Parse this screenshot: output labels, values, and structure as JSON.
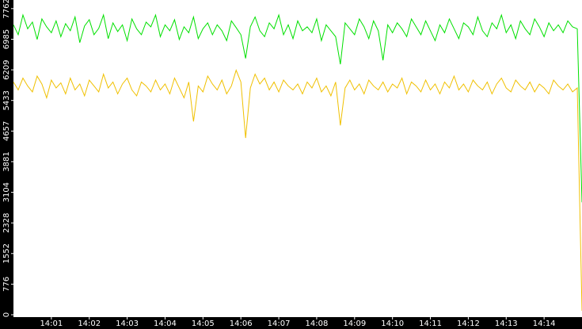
{
  "chart_data": {
    "type": "line",
    "xlim": [
      0,
      120
    ],
    "xticks": [
      {
        "value": 8,
        "label": "14:01"
      },
      {
        "value": 16,
        "label": "14:02"
      },
      {
        "value": 24,
        "label": "14:03"
      },
      {
        "value": 32,
        "label": "14:04"
      },
      {
        "value": 40,
        "label": "14:05"
      },
      {
        "value": 48,
        "label": "14:06"
      },
      {
        "value": 56,
        "label": "14:07"
      },
      {
        "value": 64,
        "label": "14:08"
      },
      {
        "value": 72,
        "label": "14:09"
      },
      {
        "value": 80,
        "label": "14:10"
      },
      {
        "value": 88,
        "label": "14:11"
      },
      {
        "value": 96,
        "label": "14:12"
      },
      {
        "value": 104,
        "label": "14:13"
      },
      {
        "value": 112,
        "label": "14:14"
      }
    ],
    "ylim": [
      -60,
      7980
    ],
    "yticks": [
      0,
      776,
      1552,
      2328,
      3104,
      3881,
      4657,
      5433,
      6209,
      6985,
      7762
    ],
    "series": [
      {
        "color": "#00e000",
        "values": [
          7350,
          7100,
          7600,
          7250,
          7420,
          6980,
          7500,
          7300,
          7150,
          7450,
          7050,
          7380,
          7200,
          7550,
          6900,
          7320,
          7480,
          7100,
          7260,
          7600,
          7000,
          7400,
          7180,
          7350,
          6950,
          7500,
          7250,
          7100,
          7420,
          7300,
          7600,
          7050,
          7350,
          7200,
          7480,
          6980,
          7300,
          7150,
          7550,
          7000,
          7250,
          7400,
          7100,
          7350,
          7200,
          6950,
          7450,
          7280,
          7100,
          6500,
          7300,
          7550,
          7200,
          7050,
          7400,
          7250,
          7600,
          7100,
          7350,
          7000,
          7450,
          7200,
          7300,
          7150,
          7500,
          6950,
          7350,
          7200,
          7050,
          6350,
          7400,
          7250,
          7100,
          7500,
          7300,
          7000,
          7450,
          7200,
          6450,
          7350,
          7150,
          7400,
          7250,
          7050,
          7500,
          7300,
          7100,
          7450,
          7200,
          6950,
          7350,
          7150,
          7500,
          7250,
          7000,
          7400,
          7300,
          7100,
          7550,
          7200,
          7050,
          7400,
          7250,
          7600,
          7150,
          7350,
          7000,
          7450,
          7250,
          7100,
          7500,
          7300,
          7050,
          7400,
          7200,
          7350,
          7150,
          7450,
          7300,
          7250,
          2850
        ]
      },
      {
        "color": "#f0c000",
        "values": [
          5900,
          5700,
          6000,
          5800,
          5650,
          6050,
          5850,
          5500,
          5950,
          5750,
          5880,
          5600,
          6000,
          5700,
          5850,
          5550,
          5950,
          5800,
          5650,
          6100,
          5750,
          5900,
          5600,
          5850,
          6000,
          5700,
          5550,
          5900,
          5800,
          5650,
          5950,
          5700,
          5850,
          5600,
          6000,
          5750,
          5500,
          5900,
          4900,
          5800,
          5650,
          6050,
          5850,
          5700,
          5950,
          5600,
          5800,
          6200,
          5900,
          4480,
          5750,
          6100,
          5850,
          6000,
          5700,
          5900,
          5650,
          5950,
          5800,
          5700,
          5850,
          5600,
          5900,
          5750,
          6000,
          5650,
          5800,
          5550,
          5900,
          4800,
          5750,
          5950,
          5700,
          5850,
          5600,
          5950,
          5800,
          5700,
          5900,
          5650,
          5850,
          5750,
          6000,
          5600,
          5900,
          5800,
          5650,
          5950,
          5700,
          5850,
          5600,
          5900,
          5750,
          6050,
          5700,
          5850,
          5650,
          5950,
          5800,
          5700,
          5900,
          5600,
          5850,
          6000,
          5750,
          5650,
          5950,
          5800,
          5700,
          5900,
          5650,
          5850,
          5750,
          5600,
          5950,
          5800,
          5700,
          5850,
          5650,
          5750,
          100
        ]
      }
    ]
  }
}
